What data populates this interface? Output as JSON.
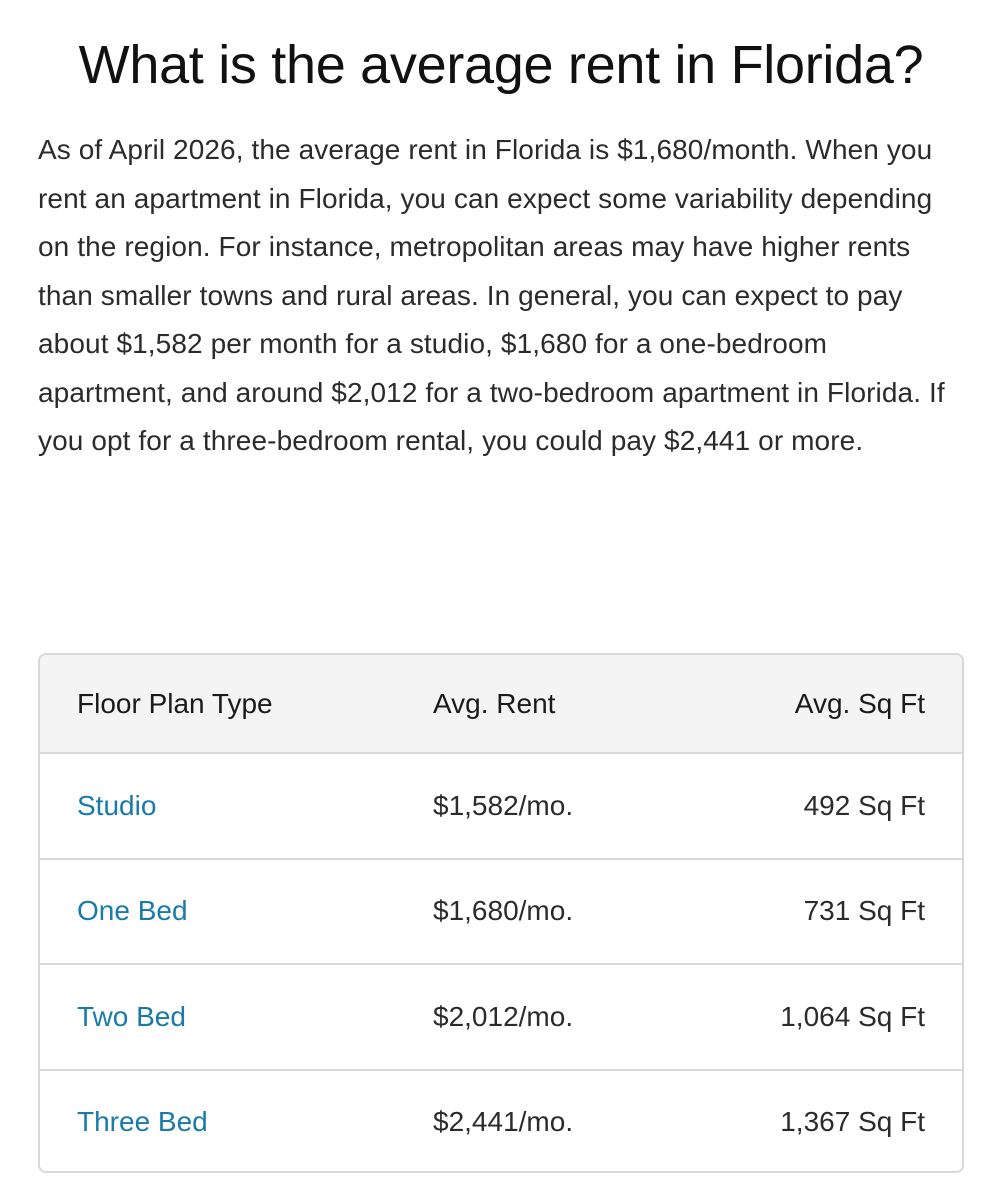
{
  "article": {
    "heading": "What is the average rent in Florida?",
    "intro": "As of April 2026, the average rent in Florida is $1,680/month. When you rent an apartment in Florida, you can expect some variability depending on the region. For instance, metropolitan areas may have higher rents than smaller towns and rural areas. In general, you can expect to pay about $1,582 per month for a studio, $1,680 for a one-bedroom apartment, and around $2,012 for a two-bedroom apartment in Florida. If you opt for a three-bedroom rental, you could pay $2,441 or more."
  },
  "table": {
    "headers": {
      "type": "Floor Plan Type",
      "rent": "Avg. Rent",
      "sqft": "Avg. Sq Ft"
    },
    "rows": [
      {
        "type": "Studio",
        "rent": "$1,582/mo.",
        "sqft": "492 Sq Ft"
      },
      {
        "type": "One Bed",
        "rent": "$1,680/mo.",
        "sqft": "731 Sq Ft"
      },
      {
        "type": "Two Bed",
        "rent": "$2,012/mo.",
        "sqft": "1,064 Sq Ft"
      },
      {
        "type": "Three Bed",
        "rent": "$2,441/mo.",
        "sqft": "1,367 Sq Ft"
      }
    ]
  },
  "colors": {
    "link": "#1a7aa8",
    "header_bg": "#f4f4f4",
    "border": "#d8d8d8"
  }
}
